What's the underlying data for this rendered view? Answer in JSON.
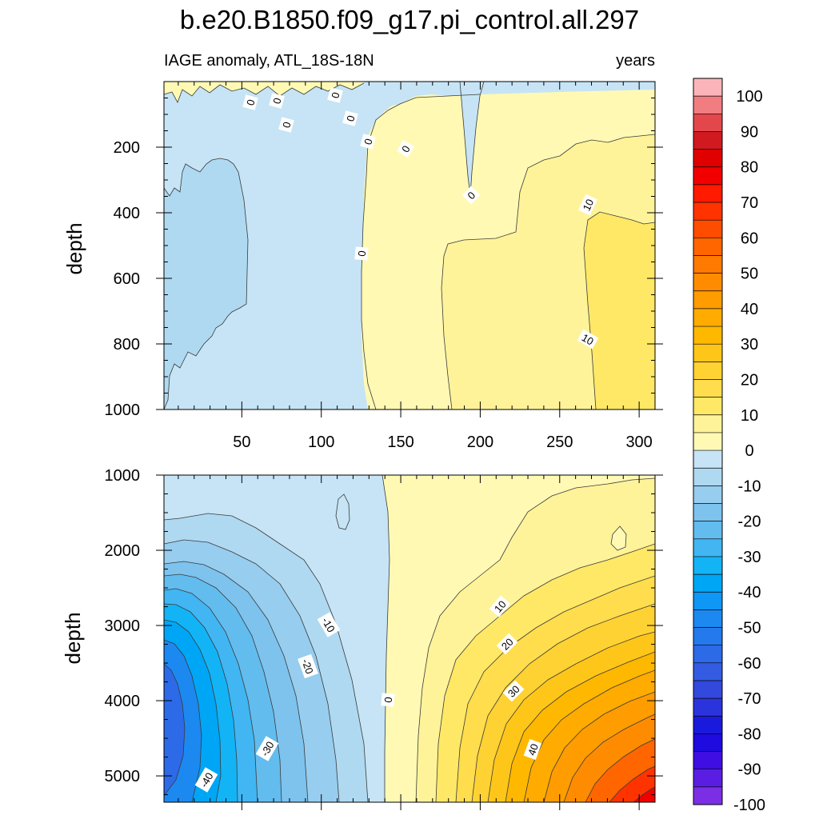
{
  "chart_data": {
    "type": "contour",
    "title": "b.e20.B1850.f09_g17.pi_control.all.297",
    "variable_label": "IAGE anomaly, ATL_18S-18N",
    "units_label": "years",
    "xlabel": "",
    "ylabel": "depth",
    "xlim": [
      1,
      310
    ],
    "x_ticks": [
      50,
      100,
      150,
      200,
      250,
      300
    ],
    "top_panel": {
      "ylim": [
        0,
        1000
      ],
      "y_ticks": [
        200,
        400,
        600,
        800,
        1000
      ],
      "contour_labels": [
        "0",
        "0",
        "0",
        "0",
        "0",
        "0",
        "0",
        "0",
        "0",
        "10",
        "10"
      ]
    },
    "bottom_panel": {
      "ylim": [
        1000,
        5350
      ],
      "y_ticks": [
        1000,
        2000,
        3000,
        4000,
        5000
      ],
      "contour_labels": [
        "-10",
        "-20",
        "-30",
        "-40",
        "0",
        "10",
        "20",
        "30",
        "40"
      ]
    },
    "colorbar": {
      "levels": [
        -100,
        -95,
        -90,
        -85,
        -80,
        -75,
        -70,
        -65,
        -60,
        -55,
        -50,
        -45,
        -40,
        -35,
        -30,
        -25,
        -20,
        -15,
        -10,
        -5,
        0,
        5,
        10,
        15,
        20,
        25,
        30,
        35,
        40,
        45,
        50,
        55,
        60,
        65,
        70,
        75,
        80,
        85,
        90,
        95,
        100
      ],
      "tick_labels": [
        "100",
        "90",
        "80",
        "70",
        "60",
        "50",
        "40",
        "30",
        "20",
        "10",
        "0",
        "-10",
        "-20",
        "-30",
        "-40",
        "-50",
        "-60",
        "-70",
        "-80",
        "-90",
        "-100"
      ],
      "colors_top_to_bottom": [
        "#fbb5ba",
        "#f27d81",
        "#e3474b",
        "#d11a1f",
        "#e00000",
        "#f20000",
        "#ff1a00",
        "#ff3300",
        "#ff4d00",
        "#ff6600",
        "#ff7a00",
        "#ff8c00",
        "#ff9c00",
        "#ffab00",
        "#ffb800",
        "#ffc61a",
        "#ffd233",
        "#ffdd4d",
        "#ffe866",
        "#fff39a",
        "#fff9b4",
        "#c6e4f5",
        "#afd9f1",
        "#97cdee",
        "#7dc3ee",
        "#63bcee",
        "#41b6f3",
        "#13b4f6",
        "#00a6f6",
        "#0e97f5",
        "#1c89f1",
        "#2479ed",
        "#2c6ae8",
        "#345ce3",
        "#3348dc",
        "#2b34dc",
        "#1a1add",
        "#1f0ae0",
        "#3f0ee2",
        "#5a1ee3",
        "#7c2ee6"
      ]
    }
  }
}
